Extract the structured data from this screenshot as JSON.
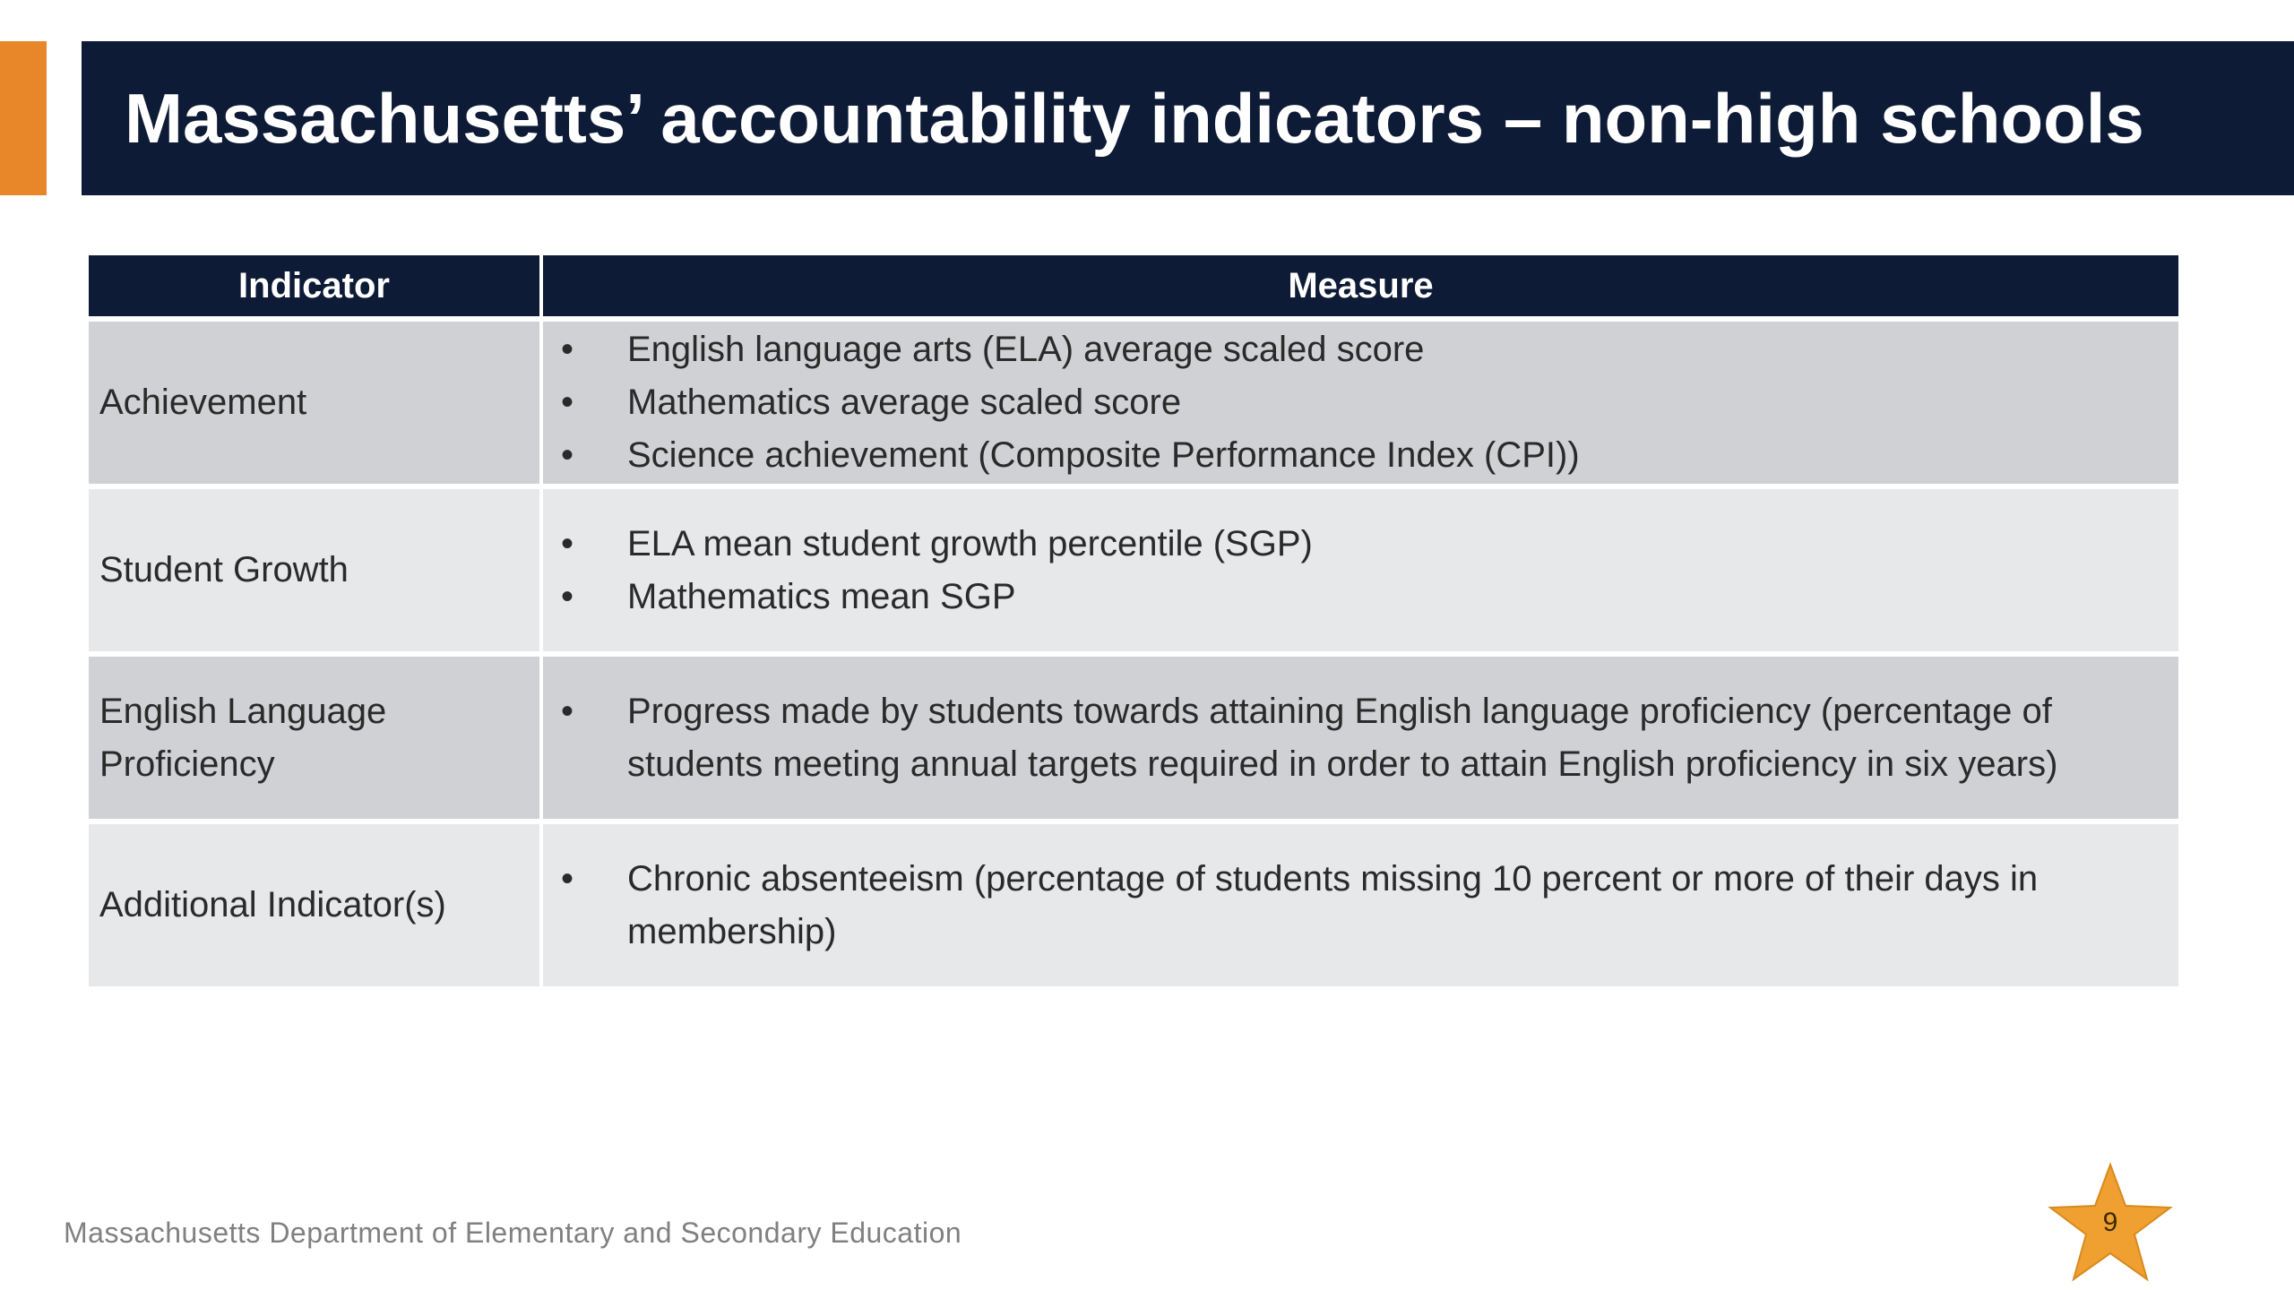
{
  "title": "Massachusetts’ accountability indicators – non-high schools",
  "colors": {
    "accent": "#e8862a",
    "navy": "#0e1b36",
    "row_dark": "#d0d1d4",
    "row_light": "#e7e8ea",
    "star": "#f0a030"
  },
  "table": {
    "headers": {
      "indicator": "Indicator",
      "measure": "Measure"
    },
    "rows": [
      {
        "indicator": "Achievement",
        "measures": [
          "English language arts (ELA) average scaled score",
          "Mathematics average scaled score",
          "Science achievement (Composite Performance Index (CPI))"
        ]
      },
      {
        "indicator": "Student Growth",
        "measures": [
          "ELA mean student growth percentile (SGP)",
          "Mathematics mean SGP"
        ]
      },
      {
        "indicator": "English Language Proficiency",
        "measures": [
          "Progress made by students towards attaining English language proficiency (percentage of students meeting annual targets required in order to attain English proficiency in six years)"
        ]
      },
      {
        "indicator": "Additional Indicator(s)",
        "measures": [
          "Chronic absenteeism (percentage of students missing 10 percent or more of their days in membership)"
        ]
      }
    ]
  },
  "bullet_char": "•",
  "footer": "Massachusetts Department of Elementary and Secondary Education",
  "page_number": "9",
  "icons": {
    "star": "star-icon"
  }
}
